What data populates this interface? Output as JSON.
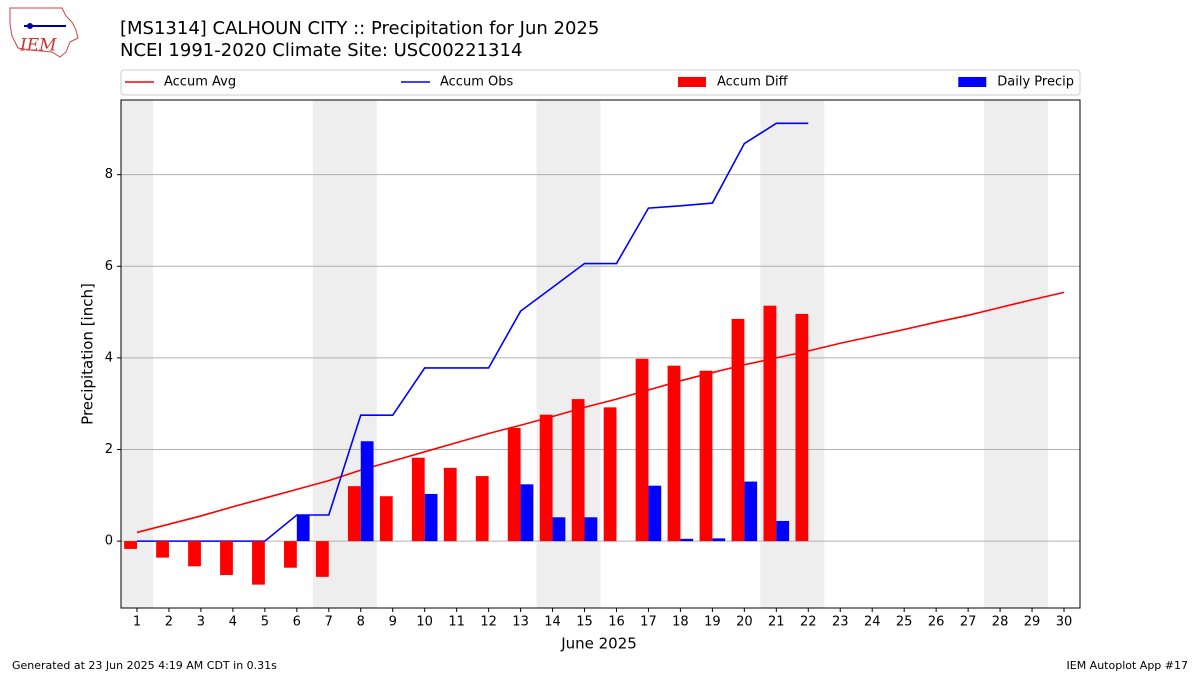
{
  "chart_data": {
    "type": "bar",
    "title": "[MS1314] CALHOUN CITY :: Precipitation for Jun 2025",
    "subtitle": "NCEI 1991-2020 Climate Site: USC00221314",
    "xlabel": "June 2025",
    "ylabel": "Precipitation [inch]",
    "x": [
      1,
      2,
      3,
      4,
      5,
      6,
      7,
      8,
      9,
      10,
      11,
      12,
      13,
      14,
      15,
      16,
      17,
      18,
      19,
      20,
      21,
      22,
      23,
      24,
      25,
      26,
      27,
      28,
      29,
      30
    ],
    "xlim": [
      0.5,
      30.5
    ],
    "xticks": [
      1,
      2,
      3,
      4,
      5,
      6,
      7,
      8,
      9,
      10,
      11,
      12,
      13,
      14,
      15,
      16,
      17,
      18,
      19,
      20,
      21,
      22,
      23,
      24,
      25,
      26,
      27,
      28,
      29,
      30
    ],
    "ylim": [
      -1.46,
      9.63
    ],
    "yticks": [
      0,
      2,
      4,
      6,
      8
    ],
    "grid": true,
    "shaded_days": [
      1,
      7,
      8,
      14,
      15,
      21,
      22,
      28,
      29
    ],
    "series": [
      {
        "name": "Accum Avg",
        "type": "line",
        "color": "#ff0000",
        "values": [
          0.19,
          0.37,
          0.55,
          0.75,
          0.94,
          1.13,
          1.32,
          1.55,
          1.75,
          1.95,
          2.15,
          2.35,
          2.53,
          2.72,
          2.92,
          3.1,
          3.3,
          3.5,
          3.68,
          3.85,
          4.0,
          4.15,
          4.32,
          4.47,
          4.62,
          4.78,
          4.93,
          5.1,
          5.27,
          5.43
        ]
      },
      {
        "name": "Accum Obs",
        "type": "line",
        "color": "#0000ff",
        "values": [
          0,
          0,
          0,
          0,
          0,
          0.57,
          0.57,
          2.75,
          2.75,
          3.78,
          3.78,
          3.78,
          5.02,
          5.54,
          6.06,
          6.06,
          7.27,
          7.32,
          7.38,
          8.68,
          9.12,
          9.12,
          null,
          null,
          null,
          null,
          null,
          null,
          null,
          null
        ]
      },
      {
        "name": "Accum Diff",
        "type": "bar",
        "color": "#ff0000",
        "values": [
          -0.17,
          -0.36,
          -0.55,
          -0.74,
          -0.95,
          -0.58,
          -0.78,
          1.2,
          0.98,
          1.82,
          1.6,
          1.42,
          2.47,
          2.76,
          3.1,
          2.92,
          3.98,
          3.83,
          3.72,
          4.85,
          5.14,
          4.96,
          null,
          null,
          null,
          null,
          null,
          null,
          null,
          null
        ]
      },
      {
        "name": "Daily Precip",
        "type": "bar",
        "color": "#0000ff",
        "values": [
          0,
          0,
          0,
          0,
          0,
          0.57,
          0,
          2.18,
          0,
          1.03,
          0,
          0,
          1.24,
          0.52,
          0.52,
          0,
          1.21,
          0.05,
          0.06,
          1.3,
          0.44,
          0,
          null,
          null,
          null,
          null,
          null,
          null,
          null,
          null
        ]
      }
    ]
  },
  "logo_text": "IEM",
  "footer_left": "Generated at 23 Jun 2025 4:19 AM CDT in 0.31s",
  "footer_right": "IEM Autoplot App #17"
}
